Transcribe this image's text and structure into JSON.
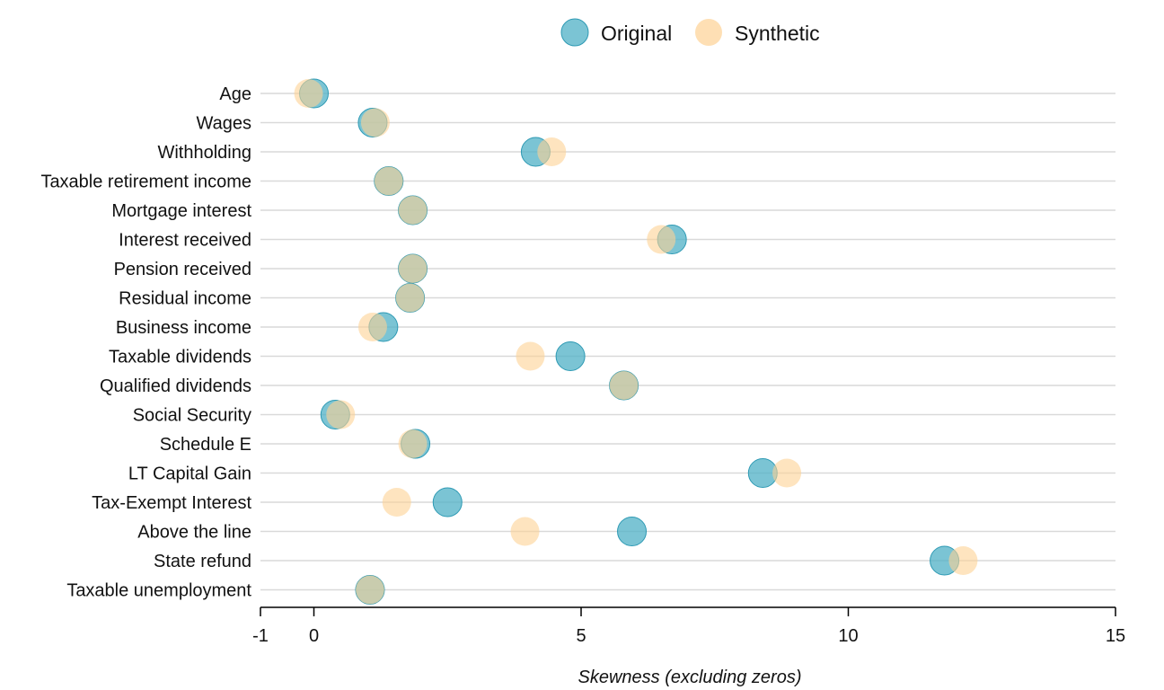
{
  "chart_data": {
    "type": "scatter",
    "subtype": "dot-plot",
    "xlabel": "Skewness (excluding zeros)",
    "xlim": [
      -1,
      15
    ],
    "xticks": [
      -1,
      0,
      5,
      10,
      15
    ],
    "grid": "horizontal",
    "legend_position": "top-center",
    "categories": [
      "Age",
      "Wages",
      "Withholding",
      "Taxable retirement income",
      "Mortgage interest",
      "Interest received",
      "Pension received",
      "Residual income",
      "Business income",
      "Taxable dividends",
      "Qualified dividends",
      "Social Security",
      "Schedule E",
      "LT Capital Gain",
      "Tax-Exempt Interest",
      "Above the line",
      "State refund",
      "Taxable unemployment"
    ],
    "series": [
      {
        "name": "Original",
        "color": "#4fb0c6",
        "values": [
          0.0,
          1.1,
          4.15,
          1.4,
          1.85,
          6.7,
          1.85,
          1.8,
          1.3,
          4.8,
          5.8,
          0.4,
          1.9,
          8.4,
          2.5,
          5.95,
          11.8,
          1.05
        ]
      },
      {
        "name": "Synthetic",
        "color": "#fdd294",
        "values": [
          -0.1,
          1.15,
          4.45,
          1.4,
          1.85,
          6.5,
          1.85,
          1.8,
          1.1,
          4.05,
          5.8,
          0.5,
          1.85,
          8.85,
          1.55,
          3.95,
          12.15,
          1.05
        ]
      }
    ]
  }
}
